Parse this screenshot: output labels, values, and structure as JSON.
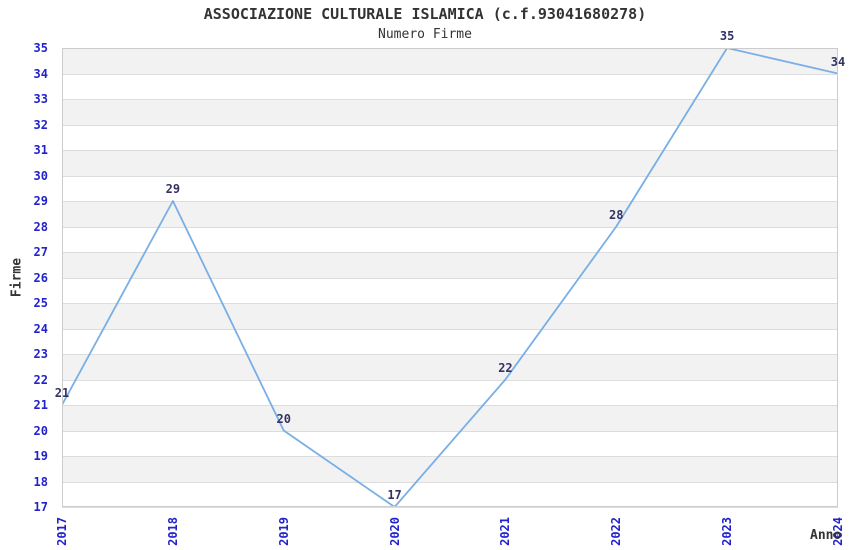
{
  "chart_data": {
    "type": "line",
    "title": "ASSOCIAZIONE CULTURALE ISLAMICA (c.f.93041680278)",
    "subtitle": "Numero Firme",
    "xlabel": "Anno",
    "ylabel": "Firme",
    "categories": [
      "2017",
      "2018",
      "2019",
      "2020",
      "2021",
      "2022",
      "2023",
      "2024"
    ],
    "values": [
      21,
      29,
      20,
      17,
      22,
      28,
      35,
      34
    ],
    "ylim": [
      17,
      35
    ],
    "ytick_step": 1,
    "grid": true,
    "legend": "none",
    "background_stripes": "alternating horizontal bands, gray on even-to-odd unit bands",
    "colors": {
      "line": "#79AFE5",
      "axis_tick_text": "#2222CC",
      "data_label_text": "#333366",
      "stripe_band": "#F2F2F2",
      "gridline": "#DDDDDD",
      "plot_border": "#CCCCCC",
      "title_text": "#333333"
    }
  }
}
